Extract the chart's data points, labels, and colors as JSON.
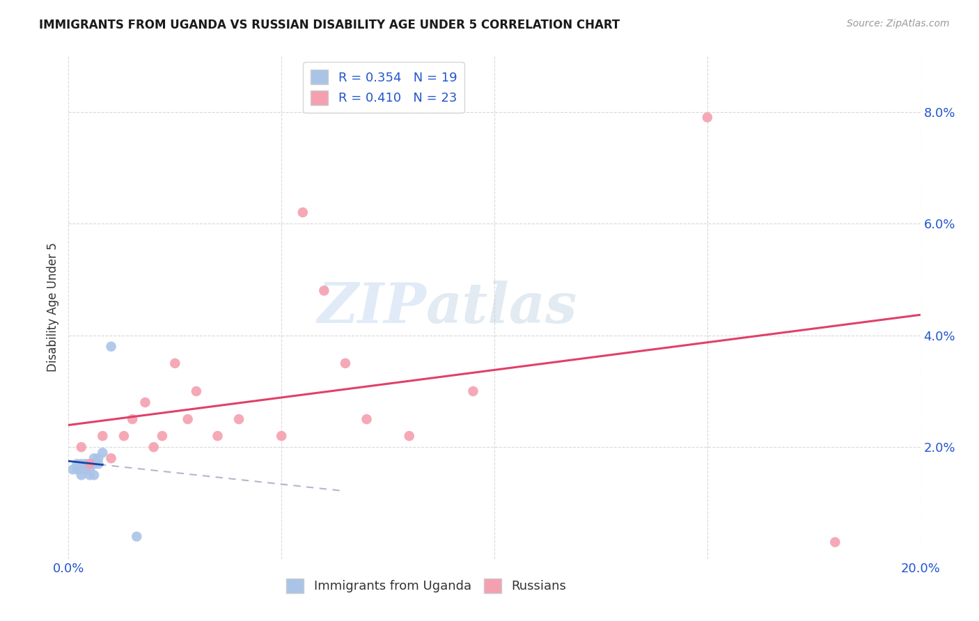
{
  "title": "IMMIGRANTS FROM UGANDA VS RUSSIAN DISABILITY AGE UNDER 5 CORRELATION CHART",
  "source": "Source: ZipAtlas.com",
  "ylabel": "Disability Age Under 5",
  "xlim": [
    0.0,
    0.2
  ],
  "ylim": [
    0.0,
    0.09
  ],
  "xticks": [
    0.0,
    0.05,
    0.1,
    0.15,
    0.2
  ],
  "xtick_labels": [
    "0.0%",
    "",
    "",
    "",
    "20.0%"
  ],
  "yticks": [
    0.0,
    0.02,
    0.04,
    0.06,
    0.08
  ],
  "ytick_labels": [
    "",
    "2.0%",
    "4.0%",
    "6.0%",
    "8.0%"
  ],
  "uganda_R": 0.354,
  "uganda_N": 19,
  "russian_R": 0.41,
  "russian_N": 23,
  "uganda_color": "#aac4e8",
  "russian_color": "#f4a0b0",
  "uganda_line_color": "#1a44aa",
  "russian_line_color": "#e0406a",
  "dashed_color": "#b0b8cc",
  "uganda_scatter_x": [
    0.001,
    0.002,
    0.002,
    0.003,
    0.003,
    0.003,
    0.004,
    0.004,
    0.005,
    0.005,
    0.005,
    0.006,
    0.006,
    0.006,
    0.007,
    0.007,
    0.008,
    0.01,
    0.016
  ],
  "uganda_scatter_y": [
    0.016,
    0.017,
    0.016,
    0.017,
    0.016,
    0.015,
    0.017,
    0.016,
    0.017,
    0.016,
    0.015,
    0.018,
    0.017,
    0.015,
    0.018,
    0.017,
    0.019,
    0.038,
    0.004
  ],
  "russian_scatter_x": [
    0.003,
    0.005,
    0.008,
    0.01,
    0.013,
    0.015,
    0.018,
    0.02,
    0.022,
    0.025,
    0.028,
    0.03,
    0.035,
    0.04,
    0.05,
    0.055,
    0.06,
    0.065,
    0.07,
    0.08,
    0.095,
    0.15,
    0.18
  ],
  "russian_scatter_y": [
    0.02,
    0.017,
    0.022,
    0.018,
    0.022,
    0.025,
    0.028,
    0.02,
    0.022,
    0.035,
    0.025,
    0.03,
    0.022,
    0.025,
    0.022,
    0.062,
    0.048,
    0.035,
    0.025,
    0.022,
    0.03,
    0.079,
    0.003
  ],
  "watermark_zip": "ZIP",
  "watermark_atlas": "atlas",
  "background_color": "#ffffff",
  "grid_color": "#d8d8d8"
}
